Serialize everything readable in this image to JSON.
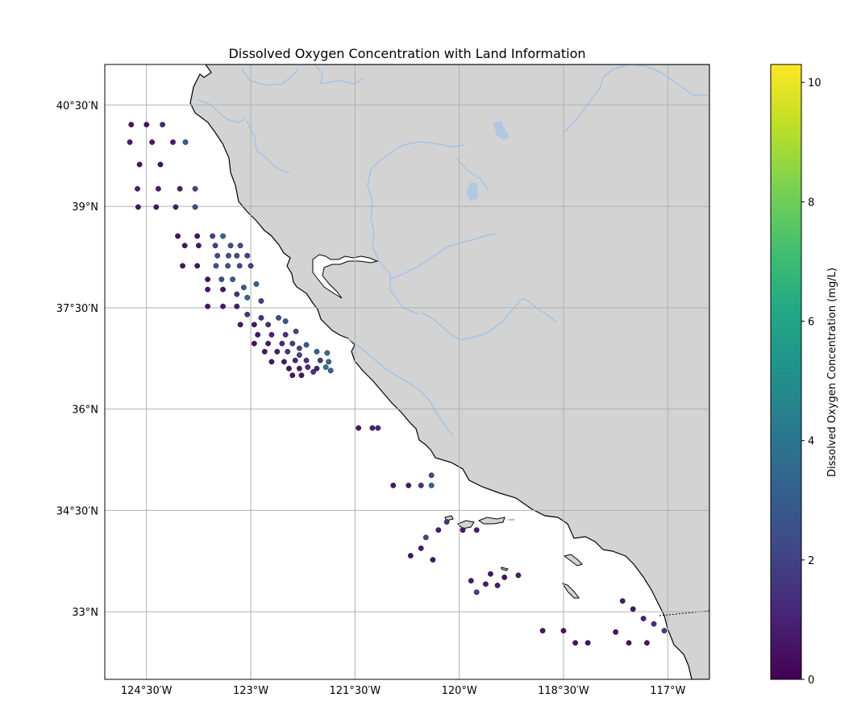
{
  "title": "Dissolved Oxygen Concentration with Land Information",
  "colorbar": {
    "label": "Dissolved Oxygen Concentration (mg/L)",
    "ticks": [
      "0",
      "2",
      "4",
      "6",
      "8",
      "10"
    ],
    "tick_values": [
      0,
      2,
      4,
      6,
      8,
      10
    ],
    "min": 0,
    "max": 10.3,
    "colormap": "viridis"
  },
  "map_extent": {
    "lon": [
      -125.1,
      -116.4
    ],
    "lat": [
      32.0,
      41.1
    ]
  },
  "colors": {
    "land": "#d3d3d3",
    "ocean": "#ffffff",
    "coastline": "#000000",
    "rivers": "#9ec1e8",
    "lakes": "#b0c8e4",
    "grid": "#b0b0b0"
  },
  "lon_ticks": [
    {
      "value": -124.5,
      "label": "124°30′W"
    },
    {
      "value": -123.0,
      "label": "123°W"
    },
    {
      "value": -121.5,
      "label": "121°30′W"
    },
    {
      "value": -120.0,
      "label": "120°W"
    },
    {
      "value": -118.5,
      "label": "118°30′W"
    },
    {
      "value": -117.0,
      "label": "117°W"
    }
  ],
  "lat_ticks": [
    {
      "value": 40.5,
      "label": "40°30′N"
    },
    {
      "value": 39.0,
      "label": "39°N"
    },
    {
      "value": 37.5,
      "label": "37°30′N"
    },
    {
      "value": 36.0,
      "label": "36°N"
    },
    {
      "value": 34.5,
      "label": "34°30′N"
    },
    {
      "value": 33.0,
      "label": "33°N"
    }
  ],
  "chart_data": {
    "type": "scatter",
    "title": "Dissolved Oxygen Concentration with Land Information",
    "x_unit": "longitude (deg)",
    "y_unit": "latitude (deg)",
    "color_label": "Dissolved Oxygen Concentration (mg/L)",
    "clim": [
      0,
      10.3
    ],
    "points": [
      [
        -124.72,
        40.21,
        0.6
      ],
      [
        -124.5,
        40.21,
        0.5
      ],
      [
        -124.27,
        40.21,
        1.3
      ],
      [
        -124.74,
        39.95,
        0.8
      ],
      [
        -124.42,
        39.95,
        0.7
      ],
      [
        -124.12,
        39.95,
        0.8
      ],
      [
        -123.94,
        39.95,
        3.0
      ],
      [
        -124.6,
        39.62,
        0.6
      ],
      [
        -124.3,
        39.62,
        0.5
      ],
      [
        -124.63,
        39.26,
        0.9
      ],
      [
        -124.33,
        39.26,
        0.8
      ],
      [
        -124.02,
        39.26,
        0.9
      ],
      [
        -123.8,
        39.26,
        2.0
      ],
      [
        -124.62,
        38.99,
        0.6
      ],
      [
        -124.36,
        38.99,
        0.6
      ],
      [
        -124.08,
        38.99,
        0.7
      ],
      [
        -123.8,
        38.99,
        2.6
      ],
      [
        -124.05,
        38.56,
        0.5
      ],
      [
        -123.77,
        38.56,
        0.5
      ],
      [
        -123.55,
        38.56,
        2.3
      ],
      [
        -123.4,
        38.56,
        3.6
      ],
      [
        -123.95,
        38.42,
        0.6
      ],
      [
        -123.75,
        38.42,
        0.6
      ],
      [
        -123.51,
        38.42,
        2.1
      ],
      [
        -123.29,
        38.42,
        2.4
      ],
      [
        -123.15,
        38.42,
        2.5
      ],
      [
        -123.48,
        38.27,
        2.5
      ],
      [
        -123.32,
        38.27,
        2.6
      ],
      [
        -123.2,
        38.27,
        2.2
      ],
      [
        -123.05,
        38.27,
        2.0
      ],
      [
        -123.98,
        38.12,
        0.5
      ],
      [
        -123.77,
        38.12,
        0.5
      ],
      [
        -123.5,
        38.12,
        2.8
      ],
      [
        -123.33,
        38.12,
        2.6
      ],
      [
        -123.16,
        38.12,
        2.4
      ],
      [
        -123.0,
        38.12,
        2.0
      ],
      [
        -123.62,
        37.92,
        0.5
      ],
      [
        -123.42,
        37.92,
        2.4
      ],
      [
        -123.26,
        37.92,
        3.1
      ],
      [
        -123.1,
        37.8,
        3.0
      ],
      [
        -122.92,
        37.85,
        3.4
      ],
      [
        -123.62,
        37.77,
        0.6
      ],
      [
        -123.4,
        37.77,
        0.5
      ],
      [
        -123.2,
        37.7,
        1.5
      ],
      [
        -123.05,
        37.65,
        3.6
      ],
      [
        -122.85,
        37.6,
        2.0
      ],
      [
        -123.62,
        37.52,
        0.6
      ],
      [
        -123.4,
        37.52,
        0.7
      ],
      [
        -123.2,
        37.52,
        0.8
      ],
      [
        -123.05,
        37.4,
        1.6
      ],
      [
        -122.85,
        37.35,
        1.5
      ],
      [
        -123.15,
        37.25,
        0.6
      ],
      [
        -122.95,
        37.25,
        0.7
      ],
      [
        -122.75,
        37.25,
        1.4
      ],
      [
        -122.6,
        37.35,
        2.5
      ],
      [
        -122.5,
        37.3,
        2.6
      ],
      [
        -122.9,
        37.1,
        0.6
      ],
      [
        -122.7,
        37.1,
        1.0
      ],
      [
        -122.5,
        37.1,
        1.5
      ],
      [
        -122.35,
        37.15,
        2.3
      ],
      [
        -122.2,
        36.95,
        3.0
      ],
      [
        -122.95,
        36.97,
        0.5
      ],
      [
        -122.75,
        36.97,
        0.7
      ],
      [
        -122.55,
        36.97,
        1.2
      ],
      [
        -122.4,
        36.97,
        1.8
      ],
      [
        -122.3,
        36.9,
        2.4
      ],
      [
        -122.8,
        36.85,
        0.6
      ],
      [
        -122.62,
        36.85,
        0.8
      ],
      [
        -122.47,
        36.85,
        1.6
      ],
      [
        -122.3,
        36.8,
        2.2
      ],
      [
        -122.05,
        36.85,
        3.2
      ],
      [
        -121.9,
        36.83,
        3.8
      ],
      [
        -122.7,
        36.7,
        0.6
      ],
      [
        -122.52,
        36.7,
        0.8
      ],
      [
        -122.36,
        36.72,
        1.2
      ],
      [
        -122.2,
        36.72,
        1.5
      ],
      [
        -122.0,
        36.72,
        2.0
      ],
      [
        -121.88,
        36.7,
        3.6
      ],
      [
        -122.45,
        36.6,
        0.6
      ],
      [
        -122.3,
        36.6,
        0.8
      ],
      [
        -122.18,
        36.62,
        1.3
      ],
      [
        -122.05,
        36.6,
        1.0
      ],
      [
        -121.92,
        36.62,
        4.2
      ],
      [
        -121.85,
        36.57,
        3.4
      ],
      [
        -122.4,
        36.5,
        0.5
      ],
      [
        -122.27,
        36.5,
        0.6
      ],
      [
        -122.1,
        36.55,
        1.6
      ],
      [
        -121.45,
        35.72,
        0.6
      ],
      [
        -121.25,
        35.72,
        0.9
      ],
      [
        -121.17,
        35.72,
        1.3
      ],
      [
        -120.95,
        34.87,
        0.6
      ],
      [
        -120.73,
        34.87,
        0.7
      ],
      [
        -120.55,
        34.87,
        1.5
      ],
      [
        -120.4,
        34.87,
        3.6
      ],
      [
        -120.4,
        35.02,
        2.6
      ],
      [
        -120.18,
        34.33,
        1.5
      ],
      [
        -120.3,
        34.21,
        0.8
      ],
      [
        -119.95,
        34.21,
        0.7
      ],
      [
        -119.75,
        34.21,
        0.8
      ],
      [
        -120.48,
        34.1,
        2.0
      ],
      [
        -120.55,
        33.94,
        0.7
      ],
      [
        -120.38,
        33.77,
        0.6
      ],
      [
        -120.7,
        33.83,
        0.6
      ],
      [
        -119.55,
        33.56,
        0.6
      ],
      [
        -119.35,
        33.51,
        0.6
      ],
      [
        -119.83,
        33.46,
        0.7
      ],
      [
        -119.62,
        33.41,
        0.8
      ],
      [
        -119.45,
        33.39,
        0.8
      ],
      [
        -119.75,
        33.29,
        2.0
      ],
      [
        -119.15,
        33.54,
        0.8
      ],
      [
        -118.8,
        32.72,
        0.5
      ],
      [
        -118.5,
        32.72,
        0.6
      ],
      [
        -118.33,
        32.54,
        0.5
      ],
      [
        -118.15,
        32.54,
        0.6
      ],
      [
        -117.75,
        32.7,
        0.5
      ],
      [
        -117.56,
        32.54,
        0.6
      ],
      [
        -117.3,
        32.54,
        0.7
      ],
      [
        -117.65,
        33.16,
        0.9
      ],
      [
        -117.5,
        33.04,
        0.6
      ],
      [
        -117.35,
        32.9,
        1.0
      ],
      [
        -117.2,
        32.82,
        1.3
      ],
      [
        -117.05,
        32.72,
        2.0
      ]
    ]
  }
}
